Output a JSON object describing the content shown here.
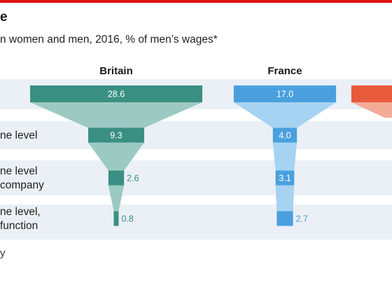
{
  "title": "e",
  "subtitle": "n women and men, 2016, % of men’s wages*",
  "footnote": "y",
  "chart_data": {
    "type": "funnel",
    "title": "e",
    "subtitle": "n women and men, 2016, % of men’s wages*",
    "rows": [
      {
        "label_lines": [
          ""
        ]
      },
      {
        "label_lines": [
          "ne level"
        ]
      },
      {
        "label_lines": [
          "ne level",
          "company"
        ]
      },
      {
        "label_lines": [
          "ne level,",
          "function"
        ]
      }
    ],
    "series": [
      {
        "name": "Britain",
        "values": [
          28.6,
          9.3,
          2.6,
          0.8
        ],
        "labels": [
          "28.6",
          "9.3",
          "2.6",
          "0.8"
        ],
        "color_dark": "#3a8f83",
        "color_light": "#9ccac2"
      },
      {
        "name": "France",
        "values": [
          17.0,
          4.0,
          3.1,
          2.7
        ],
        "labels": [
          "17.0",
          "4.0",
          "3.1",
          "2.7"
        ],
        "color_dark": "#4aa0df",
        "color_light": "#a6d3f1"
      },
      {
        "name": "",
        "values": [
          17.0
        ],
        "labels": [
          ""
        ],
        "color_dark": "#e85a3c",
        "color_light": "#f3ab98"
      }
    ],
    "value_scale_max": 28.6
  }
}
